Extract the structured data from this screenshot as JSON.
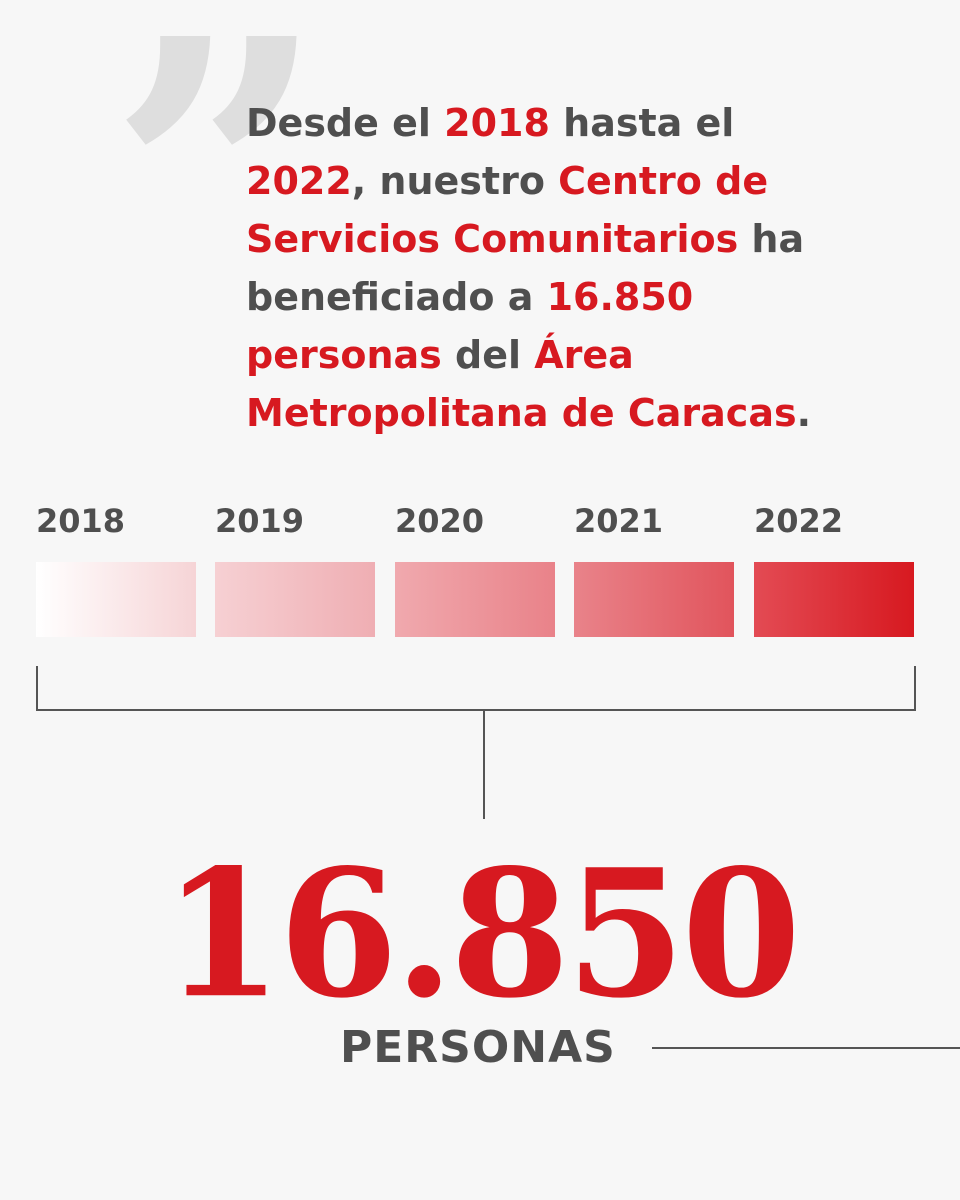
{
  "quote": {
    "mark": "”",
    "lines": [
      [
        {
          "t": "Desde el ",
          "hl": false
        },
        {
          "t": "2018",
          "hl": true
        },
        {
          "t": " hasta el",
          "hl": false
        }
      ],
      [
        {
          "t": "2022",
          "hl": true
        },
        {
          "t": ", nuestro ",
          "hl": false
        },
        {
          "t": "Centro de",
          "hl": true
        }
      ],
      [
        {
          "t": "Servicios Comunitarios",
          "hl": true
        },
        {
          "t": " ha",
          "hl": false
        }
      ],
      [
        {
          "t": "beneficiado a ",
          "hl": false
        },
        {
          "t": "16.850",
          "hl": true
        }
      ],
      [
        {
          "t": "personas",
          "hl": true
        },
        {
          "t": " del ",
          "hl": false
        },
        {
          "t": "Área",
          "hl": true
        }
      ],
      [
        {
          "t": "Metropolitana de Caracas",
          "hl": true
        },
        {
          "t": ".",
          "hl": false
        }
      ]
    ]
  },
  "timeline": {
    "years": [
      "2018",
      "2019",
      "2020",
      "2021",
      "2022"
    ]
  },
  "total": {
    "number": "16.850",
    "unit": "PERSONAS"
  },
  "colors": {
    "accent": "#d71920",
    "text": "#4f4f4f",
    "background": "#f7f7f7",
    "quote_mark": "#dedede"
  }
}
